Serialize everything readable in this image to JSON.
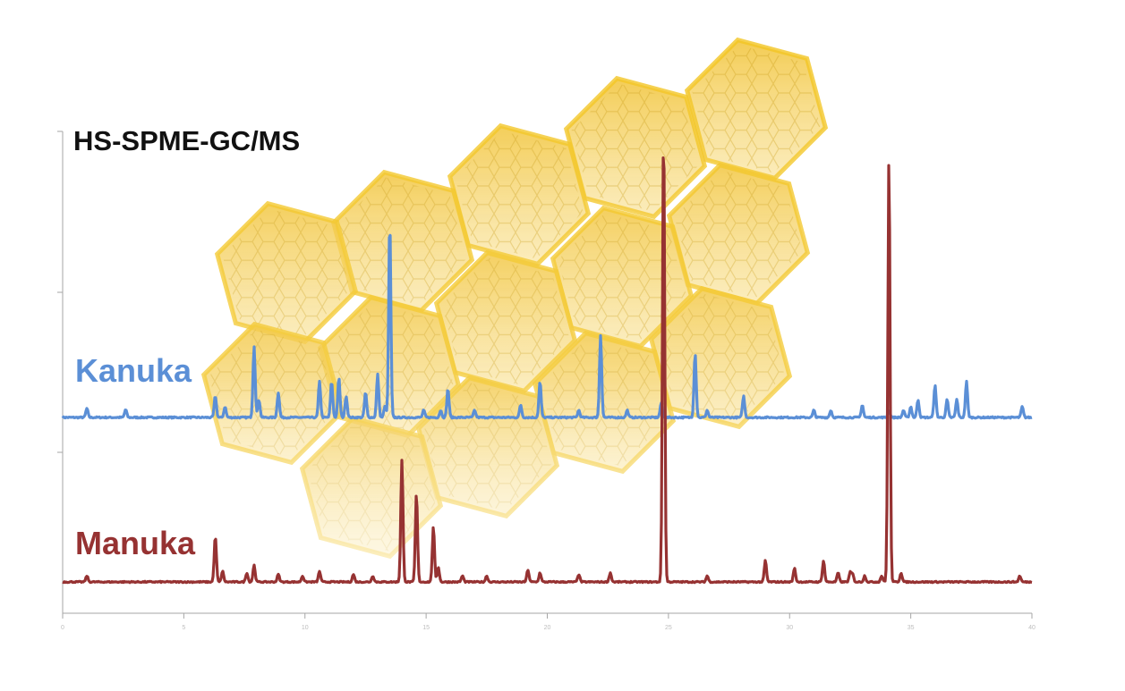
{
  "chart_data": {
    "type": "line",
    "title": "HS-SPME-GC/MS",
    "xlabel": "",
    "ylabel": "",
    "xlim": [
      0,
      40
    ],
    "x_ticks": [
      "0",
      "5",
      "10",
      "15",
      "20",
      "25",
      "30",
      "35",
      "40"
    ],
    "grid": false,
    "legend": "inline labels left of each trace",
    "series": [
      {
        "name": "Kanuka",
        "color": "#5b8fd6",
        "baseline": 0,
        "noise": 0.004,
        "peaks": [
          [
            1.0,
            0.025
          ],
          [
            2.6,
            0.022
          ],
          [
            6.3,
            0.06
          ],
          [
            6.7,
            0.03
          ],
          [
            7.9,
            0.2
          ],
          [
            8.1,
            0.05
          ],
          [
            8.9,
            0.07
          ],
          [
            10.6,
            0.1
          ],
          [
            11.1,
            0.1
          ],
          [
            11.4,
            0.11
          ],
          [
            11.7,
            0.06
          ],
          [
            12.5,
            0.07
          ],
          [
            13.0,
            0.12
          ],
          [
            13.3,
            0.03
          ],
          [
            13.5,
            0.55
          ],
          [
            14.9,
            0.02
          ],
          [
            15.6,
            0.02
          ],
          [
            15.9,
            0.08
          ],
          [
            17.0,
            0.02
          ],
          [
            18.9,
            0.035
          ],
          [
            19.7,
            0.1
          ],
          [
            21.3,
            0.02
          ],
          [
            22.2,
            0.23
          ],
          [
            23.3,
            0.02
          ],
          [
            24.7,
            0.04
          ],
          [
            26.1,
            0.18
          ],
          [
            26.6,
            0.02
          ],
          [
            28.1,
            0.06
          ],
          [
            31.0,
            0.02
          ],
          [
            31.7,
            0.02
          ],
          [
            33.0,
            0.035
          ],
          [
            34.1,
            0.02
          ],
          [
            34.7,
            0.02
          ],
          [
            35.0,
            0.03
          ],
          [
            35.3,
            0.05
          ],
          [
            36.0,
            0.09
          ],
          [
            36.5,
            0.05
          ],
          [
            36.9,
            0.05
          ],
          [
            37.3,
            0.1
          ],
          [
            39.6,
            0.03
          ]
        ]
      },
      {
        "name": "Manuka",
        "color": "#963232",
        "baseline": 0,
        "noise": 0.004,
        "peaks": [
          [
            1.0,
            0.02
          ],
          [
            6.3,
            0.15
          ],
          [
            6.6,
            0.035
          ],
          [
            7.6,
            0.03
          ],
          [
            7.9,
            0.055
          ],
          [
            8.9,
            0.025
          ],
          [
            9.9,
            0.02
          ],
          [
            10.6,
            0.035
          ],
          [
            12.0,
            0.025
          ],
          [
            12.8,
            0.02
          ],
          [
            14.0,
            0.4
          ],
          [
            14.6,
            0.29
          ],
          [
            15.3,
            0.18
          ],
          [
            15.5,
            0.05
          ],
          [
            16.5,
            0.02
          ],
          [
            17.5,
            0.02
          ],
          [
            19.2,
            0.04
          ],
          [
            19.7,
            0.03
          ],
          [
            21.3,
            0.025
          ],
          [
            22.6,
            0.03
          ],
          [
            24.8,
            1.5
          ],
          [
            26.6,
            0.02
          ],
          [
            29.0,
            0.07
          ],
          [
            30.2,
            0.045
          ],
          [
            31.4,
            0.07
          ],
          [
            32.0,
            0.03
          ],
          [
            32.5,
            0.03
          ],
          [
            32.6,
            0.025
          ],
          [
            33.1,
            0.02
          ],
          [
            33.8,
            0.02
          ],
          [
            34.1,
            1.4
          ],
          [
            34.6,
            0.03
          ],
          [
            39.5,
            0.02
          ]
        ]
      }
    ]
  }
}
